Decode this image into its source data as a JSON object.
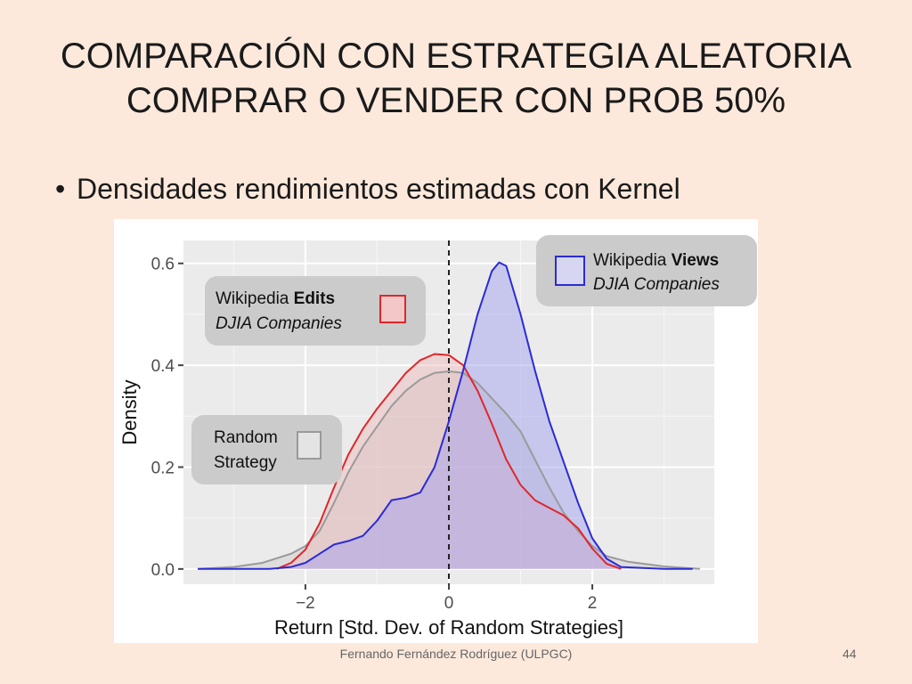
{
  "slide": {
    "title_line1": "COMPARACIÓN CON ESTRATEGIA ALEATORIA",
    "title_line2": "COMPRAR O VENDER CON PROB 50%",
    "bullet": "Densidades rendimientos estimadas con Kernel",
    "footer": "Fernando Fernández Rodríguez (ULPGC)",
    "page_number": "44"
  },
  "chart_data": {
    "type": "area",
    "xlabel": "Return [Std. Dev. of Random Strategies]",
    "ylabel": "Density",
    "xlim": [
      -3.7,
      3.7
    ],
    "ylim": [
      -0.03,
      0.645
    ],
    "x_ticks": [
      -2,
      0,
      2
    ],
    "x_tick_labels": [
      "−2",
      "0",
      "2"
    ],
    "y_ticks": [
      0.0,
      0.2,
      0.4,
      0.6
    ],
    "y_tick_labels": [
      "0.0",
      "0.2",
      "0.4",
      "0.6"
    ],
    "grid": true,
    "vline_x": 0,
    "series": [
      {
        "id": "random",
        "name_lines": [
          "Random",
          "Strategy"
        ],
        "color": "#9a9a9a",
        "fill": "#cccccc",
        "x": [
          -3.5,
          -3.0,
          -2.6,
          -2.2,
          -2.0,
          -1.8,
          -1.6,
          -1.4,
          -1.2,
          -1.0,
          -0.8,
          -0.6,
          -0.4,
          -0.2,
          0.0,
          0.2,
          0.4,
          0.6,
          0.8,
          1.0,
          1.2,
          1.4,
          1.6,
          1.8,
          2.0,
          2.2,
          2.5,
          3.0,
          3.5
        ],
        "y": [
          0.0,
          0.004,
          0.012,
          0.03,
          0.045,
          0.075,
          0.13,
          0.19,
          0.24,
          0.28,
          0.32,
          0.35,
          0.372,
          0.385,
          0.388,
          0.385,
          0.365,
          0.335,
          0.305,
          0.27,
          0.215,
          0.16,
          0.11,
          0.075,
          0.045,
          0.025,
          0.014,
          0.005,
          0.0
        ]
      },
      {
        "id": "edits",
        "name_lines": [
          "Wikipedia Edits",
          "DJIA Companies"
        ],
        "color": "#e0262b",
        "fill": "#f0b8b8",
        "x": [
          -2.4,
          -2.2,
          -2.0,
          -1.8,
          -1.6,
          -1.4,
          -1.2,
          -1.0,
          -0.8,
          -0.6,
          -0.4,
          -0.2,
          0.0,
          0.2,
          0.4,
          0.6,
          0.8,
          1.0,
          1.2,
          1.4,
          1.6,
          1.8,
          2.0,
          2.2,
          2.4
        ],
        "y": [
          0.0,
          0.012,
          0.038,
          0.09,
          0.16,
          0.225,
          0.275,
          0.315,
          0.35,
          0.385,
          0.41,
          0.422,
          0.42,
          0.4,
          0.35,
          0.285,
          0.215,
          0.165,
          0.135,
          0.12,
          0.105,
          0.08,
          0.04,
          0.01,
          0.0
        ]
      },
      {
        "id": "views",
        "name_lines": [
          "Wikipedia Views",
          "DJIA Companies"
        ],
        "color": "#2b2bd6",
        "fill": "#9c9cf0",
        "x": [
          -3.5,
          -2.5,
          -2.2,
          -2.0,
          -1.8,
          -1.6,
          -1.4,
          -1.2,
          -1.0,
          -0.8,
          -0.6,
          -0.4,
          -0.2,
          0.0,
          0.2,
          0.4,
          0.6,
          0.7,
          0.8,
          1.0,
          1.2,
          1.4,
          1.6,
          1.8,
          2.0,
          2.2,
          2.4,
          3.0,
          3.4
        ],
        "y": [
          0.0,
          0.0,
          0.004,
          0.012,
          0.03,
          0.048,
          0.055,
          0.065,
          0.095,
          0.135,
          0.14,
          0.15,
          0.2,
          0.29,
          0.39,
          0.5,
          0.585,
          0.602,
          0.595,
          0.5,
          0.39,
          0.29,
          0.21,
          0.13,
          0.06,
          0.02,
          0.004,
          0.0,
          0.0
        ]
      }
    ]
  },
  "legend": {
    "random": {
      "line1": "Random",
      "line2": "Strategy"
    },
    "edits": {
      "line1_plain": "Wikipedia ",
      "line1_bold": "Edits",
      "line2": "DJIA Companies"
    },
    "views": {
      "line1_plain": "Wikipedia ",
      "line1_bold": "Views",
      "line2": "DJIA Companies"
    }
  }
}
